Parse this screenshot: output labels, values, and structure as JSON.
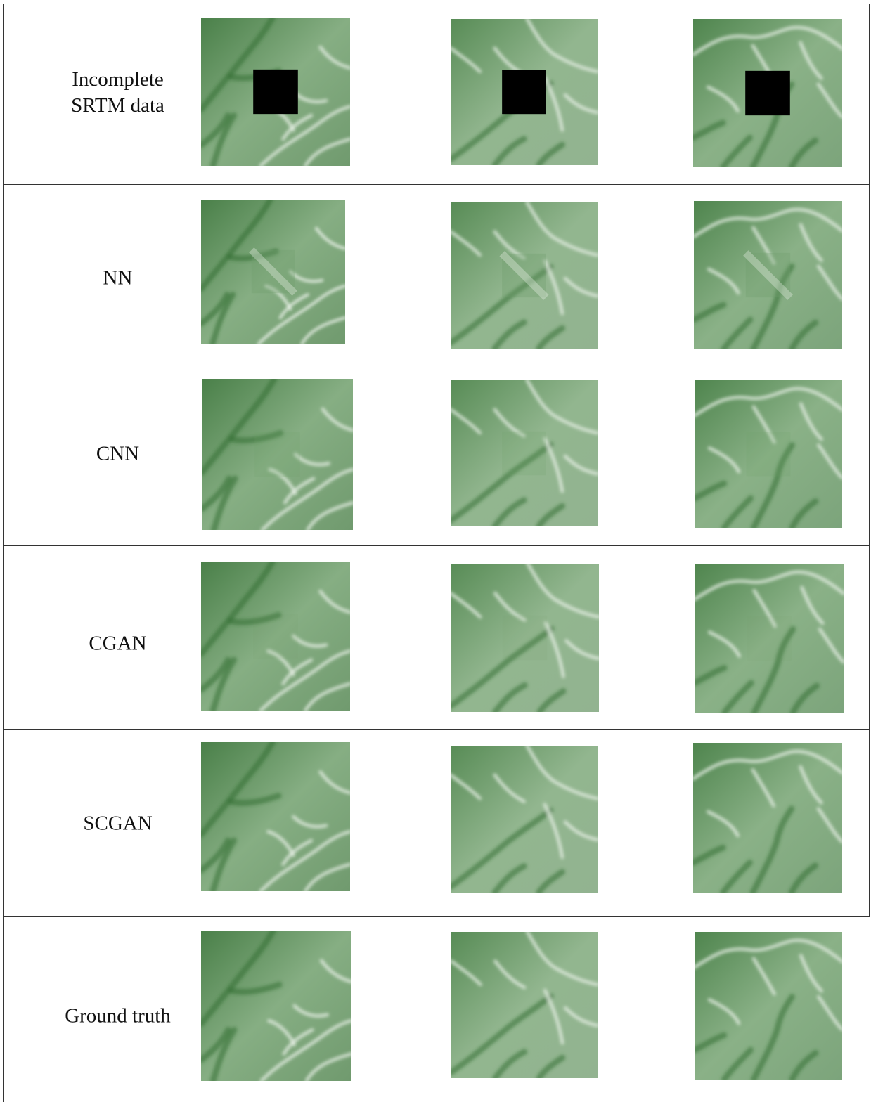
{
  "figure": {
    "rows": [
      {
        "label": [
          "Incomplete",
          "SRTM data"
        ],
        "mask": "black"
      },
      {
        "label": [
          "NN"
        ],
        "mask": "nn"
      },
      {
        "label": [
          "CNN"
        ],
        "mask": "cnn"
      },
      {
        "label": [
          "CGAN"
        ],
        "mask": "cgan"
      },
      {
        "label": [
          "SCGAN"
        ],
        "mask": "none"
      },
      {
        "label": [
          "Ground truth"
        ],
        "mask": "none"
      }
    ],
    "columns": [
      {
        "terrain": "terrain-a"
      },
      {
        "terrain": "terrain-b"
      },
      {
        "terrain": "terrain-c"
      }
    ],
    "colors": {
      "dark_green": "#2f6b2f",
      "mid_green": "#6f9e6c",
      "light_green": "#c9dcc6",
      "highlight": "#eef4ec",
      "mask": "#000000",
      "border": "#333333"
    }
  }
}
